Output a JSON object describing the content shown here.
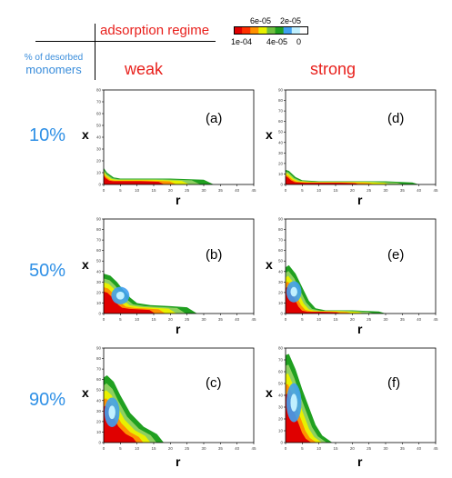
{
  "header": {
    "regime_label": "adsorption regime",
    "percent_label_line1": "% of desorbed",
    "percent_label_line2": "monomers"
  },
  "colorbar": {
    "ticks_top": [
      "6e-05",
      "2e-05"
    ],
    "ticks_bottom": [
      "1e-04",
      "4e-05",
      "0"
    ],
    "colors": [
      "#e00000",
      "#ff3000",
      "#ff9000",
      "#e8f000",
      "#70c040",
      "#20a020",
      "#40a0f0",
      "#c0f0ff",
      "#ffffff"
    ]
  },
  "columns": [
    {
      "title": "weak"
    },
    {
      "title": "strong"
    }
  ],
  "rows": [
    {
      "label": "10%"
    },
    {
      "label": "50%"
    },
    {
      "label": "90%"
    }
  ],
  "chart_data": [
    {
      "type": "heatmap",
      "panel": "(a)",
      "regime": "weak",
      "desorbed": "10%",
      "xlabel": "r",
      "ylabel": "x",
      "xlim": [
        0,
        45
      ],
      "ylim": [
        0,
        80
      ],
      "xticks": [
        0,
        5,
        10,
        15,
        20,
        25,
        30,
        35,
        40,
        45
      ],
      "yticks": [
        0,
        10,
        20,
        30,
        40,
        50,
        60,
        70,
        80
      ],
      "profile": {
        "r": [
          0,
          1,
          3,
          5,
          10,
          20,
          30,
          33
        ],
        "height": [
          14,
          10,
          6,
          5,
          5,
          5,
          4,
          0
        ]
      }
    },
    {
      "type": "heatmap",
      "panel": "(b)",
      "regime": "weak",
      "desorbed": "50%",
      "xlabel": "r",
      "ylabel": "x",
      "xlim": [
        0,
        45
      ],
      "ylim": [
        0,
        90
      ],
      "xticks": [
        0,
        5,
        10,
        15,
        20,
        25,
        30,
        35,
        40,
        45
      ],
      "yticks": [
        0,
        10,
        20,
        30,
        40,
        50,
        60,
        70,
        80,
        90
      ],
      "profile": {
        "r": [
          0,
          2,
          4,
          6,
          8,
          10,
          14,
          20,
          25,
          28
        ],
        "height": [
          38,
          36,
          30,
          22,
          15,
          10,
          8,
          7,
          6,
          0
        ]
      }
    },
    {
      "type": "heatmap",
      "panel": "(c)",
      "regime": "weak",
      "desorbed": "90%",
      "xlabel": "r",
      "ylabel": "x",
      "xlim": [
        0,
        45
      ],
      "ylim": [
        0,
        90
      ],
      "xticks": [
        0,
        5,
        10,
        15,
        20,
        25,
        30,
        35,
        40,
        45
      ],
      "yticks": [
        0,
        10,
        20,
        30,
        40,
        50,
        60,
        70,
        80,
        90
      ],
      "profile": {
        "r": [
          0,
          1,
          3,
          5,
          8,
          12,
          16,
          18
        ],
        "height": [
          62,
          64,
          58,
          45,
          28,
          15,
          8,
          0
        ]
      }
    },
    {
      "type": "heatmap",
      "panel": "(d)",
      "regime": "strong",
      "desorbed": "10%",
      "xlabel": "r",
      "ylabel": "x",
      "xlim": [
        0,
        45
      ],
      "ylim": [
        0,
        90
      ],
      "xticks": [
        0,
        5,
        10,
        15,
        20,
        25,
        30,
        35,
        40,
        45
      ],
      "yticks": [
        0,
        10,
        20,
        30,
        40,
        50,
        60,
        70,
        80,
        90
      ],
      "profile": {
        "r": [
          0,
          1,
          3,
          5,
          10,
          20,
          30,
          38,
          40
        ],
        "height": [
          14,
          13,
          7,
          4,
          3,
          3,
          3,
          2,
          0
        ]
      }
    },
    {
      "type": "heatmap",
      "panel": "(e)",
      "regime": "strong",
      "desorbed": "50%",
      "xlabel": "r",
      "ylabel": "x",
      "xlim": [
        0,
        45
      ],
      "ylim": [
        0,
        90
      ],
      "xticks": [
        0,
        5,
        10,
        15,
        20,
        25,
        30,
        35,
        40,
        45
      ],
      "yticks": [
        0,
        10,
        20,
        30,
        40,
        50,
        60,
        70,
        80,
        90
      ],
      "profile": {
        "r": [
          0,
          1,
          3,
          5,
          7,
          9,
          12,
          20,
          28,
          30
        ],
        "height": [
          44,
          46,
          38,
          25,
          12,
          5,
          3,
          3,
          2,
          0
        ]
      }
    },
    {
      "type": "heatmap",
      "panel": "(f)",
      "regime": "strong",
      "desorbed": "90%",
      "xlabel": "r",
      "ylabel": "x",
      "xlim": [
        0,
        45
      ],
      "ylim": [
        0,
        80
      ],
      "xticks": [
        0,
        5,
        10,
        15,
        20,
        25,
        30,
        35,
        40,
        45
      ],
      "yticks": [
        0,
        10,
        20,
        30,
        40,
        50,
        60,
        70,
        80
      ],
      "profile": {
        "r": [
          0,
          1,
          3,
          5,
          7,
          9,
          11,
          13,
          14
        ],
        "height": [
          74,
          75,
          62,
          45,
          30,
          15,
          6,
          2,
          0
        ]
      }
    }
  ]
}
